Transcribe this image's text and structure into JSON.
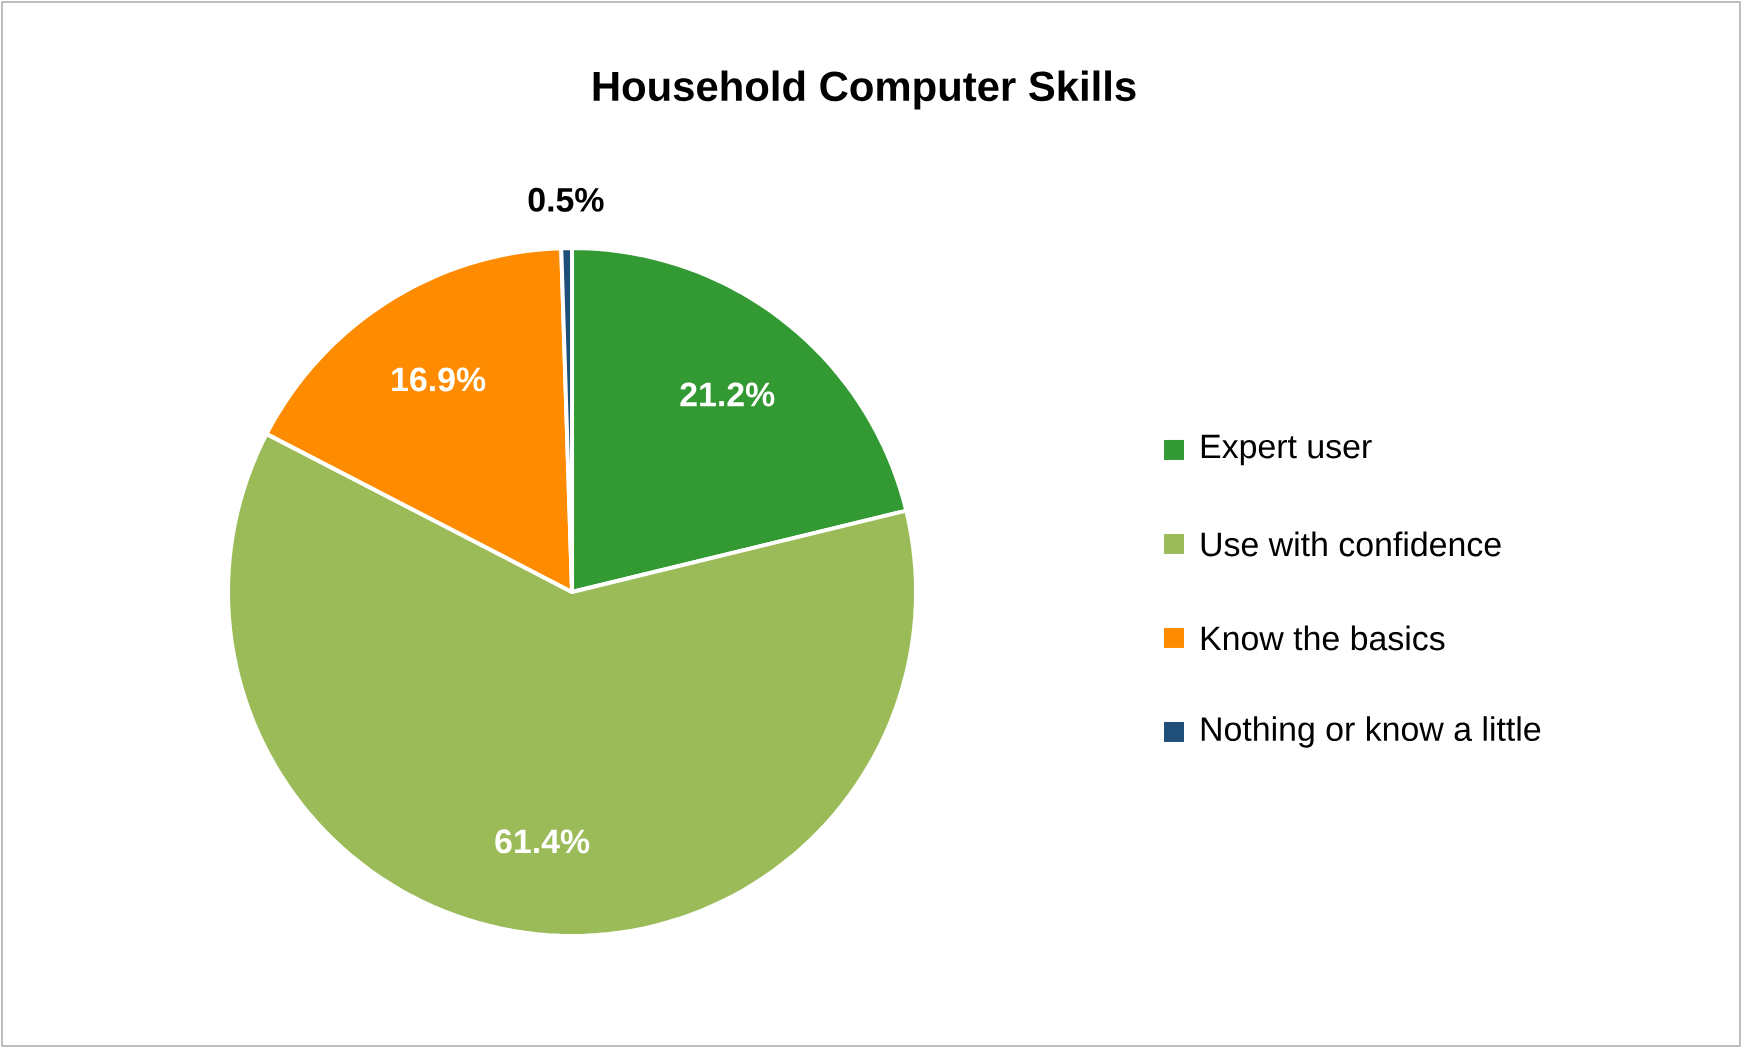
{
  "chart_data": {
    "type": "pie",
    "title": "Household Computer Skills",
    "categories": [
      "Expert user",
      "Use with confidence",
      "Know the basics",
      "Nothing or know a little"
    ],
    "values": [
      21.2,
      61.4,
      16.9,
      0.5
    ],
    "value_labels": [
      "21.2%",
      "61.4%",
      "16.9%",
      "0.5%"
    ],
    "colors": [
      "#339933",
      "#9bbb59",
      "#ff8c00",
      "#1f4e79"
    ],
    "legend": "right"
  }
}
